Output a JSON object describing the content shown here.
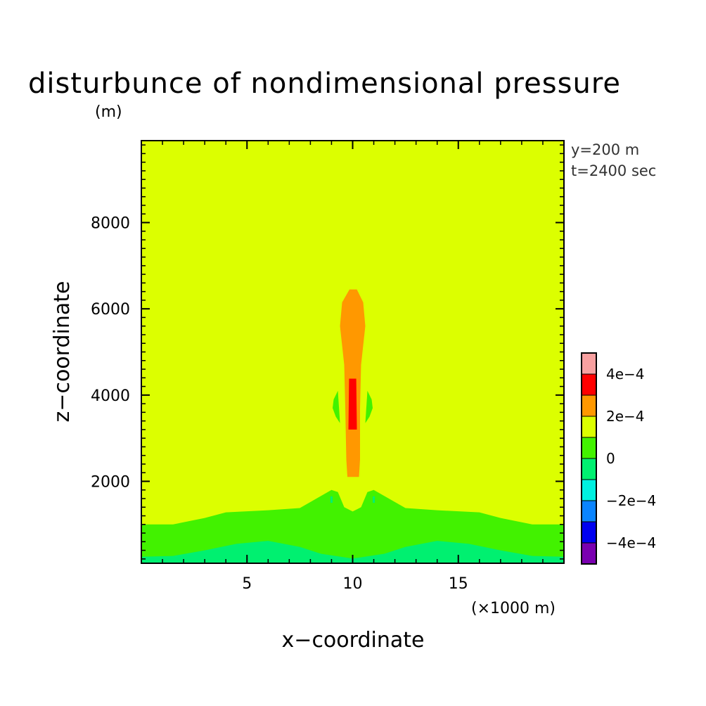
{
  "chart_data": {
    "type": "heatmap",
    "title": "disturbunce of nondimensional pressure",
    "y_unit": "(m)",
    "x_unit": "(×1000 m)",
    "xlabel": "x−coordinate",
    "ylabel": "z−coordinate",
    "annotations": [
      "y=200 m",
      "t=2400 sec"
    ],
    "xlim": [
      0,
      20
    ],
    "ylim": [
      100,
      9900
    ],
    "x_ticks": [
      5,
      10,
      15
    ],
    "x_tick_labels": [
      "5",
      "10",
      "15"
    ],
    "y_ticks": [
      2000,
      4000,
      6000,
      8000
    ],
    "y_tick_labels": [
      "2000",
      "4000",
      "6000",
      "8000"
    ],
    "grid": false,
    "legend_placement": "right",
    "colorbar": {
      "bands": [
        {
          "from": -0.0005,
          "to": -0.0004,
          "color": "#7a00b0"
        },
        {
          "from": -0.0004,
          "to": -0.0003,
          "color": "#0000f0"
        },
        {
          "from": -0.0003,
          "to": -0.0002,
          "color": "#0a84ff"
        },
        {
          "from": -0.0002,
          "to": -0.0001,
          "color": "#00f0e0"
        },
        {
          "from": -0.0001,
          "to": 0.0,
          "color": "#00f070"
        },
        {
          "from": 0.0,
          "to": 0.0001,
          "color": "#42f200"
        },
        {
          "from": 0.0001,
          "to": 0.0002,
          "color": "#dcff00"
        },
        {
          "from": 0.0002,
          "to": 0.0003,
          "color": "#ff9800"
        },
        {
          "from": 0.0003,
          "to": 0.0004,
          "color": "#ff0000"
        },
        {
          "from": 0.0004,
          "to": 0.0005,
          "color": "#f8a0a0"
        }
      ],
      "tick_labels": [
        {
          "value": 0.0004,
          "label": "4e−4"
        },
        {
          "value": 0.0002,
          "label": "2e−4"
        },
        {
          "value": 0.0,
          "label": "0"
        },
        {
          "value": -0.0002,
          "label": "−2e−4"
        },
        {
          "value": -0.0004,
          "label": "−4e−4"
        }
      ]
    },
    "regions": [
      {
        "band": 5,
        "desc": "low-level layer",
        "polygon": [
          [
            0,
            100
          ],
          [
            0,
            1000
          ],
          [
            1.5,
            1000
          ],
          [
            3,
            1150
          ],
          [
            4,
            1280
          ],
          [
            6,
            1330
          ],
          [
            7.5,
            1380
          ],
          [
            9,
            1800
          ],
          [
            9.3,
            1750
          ],
          [
            9.6,
            1400
          ],
          [
            10,
            1300
          ],
          [
            10.4,
            1400
          ],
          [
            10.7,
            1750
          ],
          [
            11,
            1800
          ],
          [
            12.5,
            1380
          ],
          [
            14,
            1330
          ],
          [
            16,
            1280
          ],
          [
            17,
            1150
          ],
          [
            18.5,
            1000
          ],
          [
            20,
            1000
          ],
          [
            20,
            100
          ]
        ]
      },
      {
        "band": 4,
        "desc": "near-surface band",
        "polygon": [
          [
            0,
            100
          ],
          [
            0,
            250
          ],
          [
            1.5,
            270
          ],
          [
            3,
            400
          ],
          [
            4.5,
            550
          ],
          [
            6,
            620
          ],
          [
            7.5,
            480
          ],
          [
            8.5,
            320
          ],
          [
            10,
            210
          ],
          [
            11.5,
            320
          ],
          [
            12.5,
            480
          ],
          [
            14,
            620
          ],
          [
            15.5,
            550
          ],
          [
            17,
            400
          ],
          [
            18.5,
            270
          ],
          [
            20,
            250
          ],
          [
            20,
            100
          ]
        ]
      },
      {
        "band": 7,
        "desc": "mid-level column",
        "polygon": [
          [
            9.85,
            6450
          ],
          [
            10.2,
            6450
          ],
          [
            10.5,
            6150
          ],
          [
            10.6,
            5600
          ],
          [
            10.4,
            4700
          ],
          [
            10.35,
            3700
          ],
          [
            10.35,
            2500
          ],
          [
            10.3,
            2100
          ],
          [
            9.75,
            2100
          ],
          [
            9.7,
            2500
          ],
          [
            9.65,
            3700
          ],
          [
            9.6,
            4700
          ],
          [
            9.4,
            5600
          ],
          [
            9.5,
            6150
          ]
        ]
      },
      {
        "band": 8,
        "desc": "core",
        "polygon": [
          [
            9.83,
            4380
          ],
          [
            10.17,
            4380
          ],
          [
            10.2,
            3200
          ],
          [
            9.8,
            3200
          ]
        ]
      },
      {
        "band": 5,
        "desc": "left lobe",
        "polygon": [
          [
            9.3,
            4100
          ],
          [
            9.1,
            3900
          ],
          [
            9.05,
            3700
          ],
          [
            9.2,
            3500
          ],
          [
            9.4,
            3350
          ]
        ]
      },
      {
        "band": 5,
        "desc": "right lobe",
        "polygon": [
          [
            10.7,
            4100
          ],
          [
            10.9,
            3900
          ],
          [
            10.95,
            3700
          ],
          [
            10.8,
            3500
          ],
          [
            10.6,
            3350
          ]
        ]
      },
      {
        "band": 4,
        "desc": "left spot",
        "polygon": [
          [
            8.95,
            1650
          ],
          [
            9.05,
            1650
          ],
          [
            9.05,
            1500
          ],
          [
            8.95,
            1500
          ]
        ]
      },
      {
        "band": 4,
        "desc": "right spot",
        "polygon": [
          [
            10.95,
            1650
          ],
          [
            11.05,
            1650
          ],
          [
            11.05,
            1500
          ],
          [
            10.95,
            1500
          ]
        ]
      }
    ],
    "background_band": 6
  }
}
